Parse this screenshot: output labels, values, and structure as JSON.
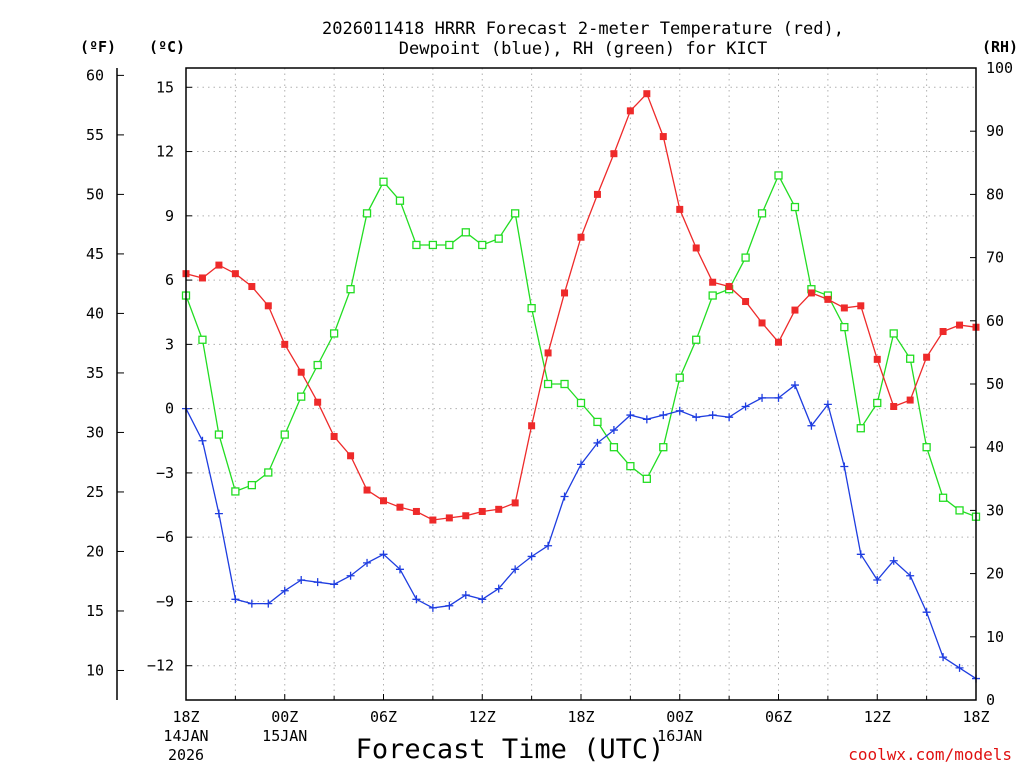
{
  "chart_data": {
    "type": "line",
    "title_line1": "2026011418 HRRR Forecast 2-meter Temperature (red),",
    "title_line2": "Dewpoint (blue), RH (green) for KICT",
    "unit_left_f": "(ºF)",
    "unit_left_c": "(ºC)",
    "unit_right": "(RH)",
    "xlabel": "Forecast Time (UTC)",
    "credit": "coolwx.com/models",
    "x_hours": [
      0,
      1,
      2,
      3,
      4,
      5,
      6,
      7,
      8,
      9,
      10,
      11,
      12,
      13,
      14,
      15,
      16,
      17,
      18,
      19,
      20,
      21,
      22,
      23,
      24,
      25,
      26,
      27,
      28,
      29,
      30,
      31,
      32,
      33,
      34,
      35,
      36,
      37,
      38,
      39,
      40,
      41,
      42,
      43,
      44,
      45,
      46,
      47,
      48
    ],
    "x_ticks": [
      {
        "hour": 0,
        "label": "18Z",
        "sub1": "14JAN",
        "sub2": "2026"
      },
      {
        "hour": 6,
        "label": "00Z",
        "sub1": "15JAN",
        "sub2": ""
      },
      {
        "hour": 12,
        "label": "06Z",
        "sub1": "",
        "sub2": ""
      },
      {
        "hour": 18,
        "label": "12Z",
        "sub1": "",
        "sub2": ""
      },
      {
        "hour": 24,
        "label": "18Z",
        "sub1": "",
        "sub2": ""
      },
      {
        "hour": 30,
        "label": "00Z",
        "sub1": "16JAN",
        "sub2": ""
      },
      {
        "hour": 36,
        "label": "06Z",
        "sub1": "",
        "sub2": ""
      },
      {
        "hour": 42,
        "label": "12Z",
        "sub1": "",
        "sub2": ""
      },
      {
        "hour": 48,
        "label": "18Z",
        "sub1": "",
        "sub2": ""
      }
    ],
    "celsius_ticks": [
      {
        "value": 15,
        "label": "15"
      },
      {
        "value": 12,
        "label": "12"
      },
      {
        "value": 9,
        "label": "9"
      },
      {
        "value": 6,
        "label": "6"
      },
      {
        "value": 3,
        "label": "3"
      },
      {
        "value": 0,
        "label": "0"
      },
      {
        "value": -3,
        "label": "−3"
      },
      {
        "value": -6,
        "label": "−6"
      },
      {
        "value": -9,
        "label": "−9"
      },
      {
        "value": -12,
        "label": "−12"
      }
    ],
    "fahrenheit_ticks": [
      "10",
      "15",
      "20",
      "25",
      "30",
      "35",
      "40",
      "45",
      "50",
      "55",
      "60"
    ],
    "rh_ticks": [
      "0",
      "10",
      "20",
      "30",
      "40",
      "50",
      "60",
      "70",
      "80",
      "90",
      "100"
    ],
    "ylim_celsius": [
      -13.6,
      15.9
    ],
    "ylim_rh": [
      0,
      100
    ],
    "xlim_hours": [
      0,
      48
    ],
    "series": [
      {
        "name": "2-meter Temperature",
        "color": "#ee2a2a",
        "marker": "filled-square",
        "axis": "celsius",
        "values": [
          6.3,
          6.1,
          6.7,
          6.3,
          5.7,
          4.8,
          3.0,
          1.7,
          0.3,
          -1.3,
          -2.2,
          -3.8,
          -4.3,
          -4.6,
          -4.8,
          -5.2,
          -5.1,
          -5.0,
          -4.8,
          -4.7,
          -4.4,
          -0.8,
          2.6,
          5.4,
          8.0,
          10.0,
          11.9,
          13.9,
          14.7,
          12.7,
          9.3,
          7.5,
          5.9,
          5.7,
          5.0,
          4.0,
          3.1,
          4.6,
          5.4,
          5.1,
          4.7,
          4.8,
          2.3,
          0.1,
          0.4,
          2.4,
          3.6,
          3.9,
          3.8
        ]
      },
      {
        "name": "Dewpoint",
        "color": "#1e3de0",
        "marker": "plus",
        "axis": "celsius",
        "values": [
          0.0,
          -1.5,
          -4.9,
          -8.9,
          -9.1,
          -9.1,
          -8.5,
          -8.0,
          -8.1,
          -8.2,
          -7.8,
          -7.2,
          -6.8,
          -7.5,
          -8.9,
          -9.3,
          -9.2,
          -8.7,
          -8.9,
          -8.4,
          -7.5,
          -6.9,
          -6.4,
          -4.1,
          -2.6,
          -1.6,
          -1.0,
          -0.3,
          -0.5,
          -0.3,
          -0.1,
          -0.4,
          -0.3,
          -0.4,
          0.1,
          0.5,
          0.5,
          1.1,
          -0.8,
          0.2,
          -2.7,
          -6.8,
          -8.0,
          -7.1,
          -7.8,
          -9.5,
          -11.6,
          -12.1,
          -12.6
        ]
      },
      {
        "name": "RH",
        "color": "#22dd22",
        "marker": "open-square",
        "axis": "rh",
        "values": [
          64,
          57,
          42,
          33,
          34,
          36,
          42,
          48,
          53,
          58,
          65,
          77,
          82,
          79,
          72,
          72,
          72,
          74,
          72,
          73,
          77,
          62,
          50,
          50,
          47,
          44,
          40,
          37,
          35,
          40,
          51,
          57,
          64,
          65,
          70,
          77,
          83,
          78,
          65,
          64,
          59,
          43,
          47,
          58,
          54,
          40,
          32,
          30,
          29
        ]
      }
    ]
  }
}
